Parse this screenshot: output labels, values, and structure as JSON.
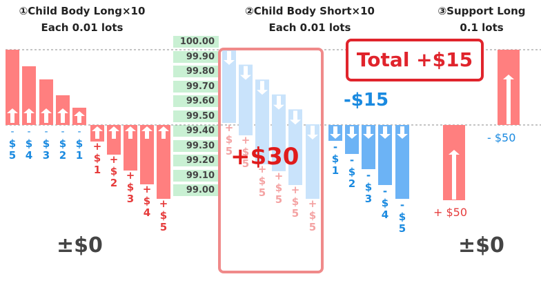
{
  "headers": {
    "h1": {
      "title": "①Child Body Long×10",
      "subtitle": "Each 0.01 lots"
    },
    "h2": {
      "title": "②Child Body Short×10",
      "subtitle": "Each 0.01 lots"
    },
    "h3": {
      "title": "③Support Long",
      "subtitle": "0.1 lots"
    }
  },
  "price_levels": [
    "100.00",
    "99.90",
    "99.80",
    "99.70",
    "99.60",
    "99.50",
    "99.40",
    "99.30",
    "99.20",
    "99.10",
    "99.00"
  ],
  "group1": {
    "above_labels": [
      "$5",
      "$4",
      "$3",
      "$2",
      "$1"
    ],
    "below_labels": [
      "+$1",
      "+$2",
      "+$3",
      "+$4",
      "+$5"
    ],
    "result": "±$0"
  },
  "group2": {
    "faded_labels": [
      "+$5",
      "+$5",
      "+$5",
      "+$5",
      "+$5",
      "+$5"
    ],
    "blue_labels": [
      "-$1",
      "-$2",
      "-$3",
      "-$4",
      "-$5"
    ],
    "overlay_value": "+$30"
  },
  "group3": {
    "negative_label": "- $50",
    "positive_label": "+ $50",
    "result": "±$0",
    "short_value": "-$15"
  },
  "total": "Total +$15",
  "colors": {
    "red_bar": "#ff7f7f",
    "blue_bar": "#6cb3f5",
    "pale_blue_bar": "#c9e3fb",
    "red_text": "#e63c3c",
    "blue_text": "#1a8ae0",
    "pale_red_text": "#f4a3a3",
    "price_bg": "#c9f0d3",
    "highlight_border": "#f08a8a",
    "total_border": "#e0242c"
  }
}
